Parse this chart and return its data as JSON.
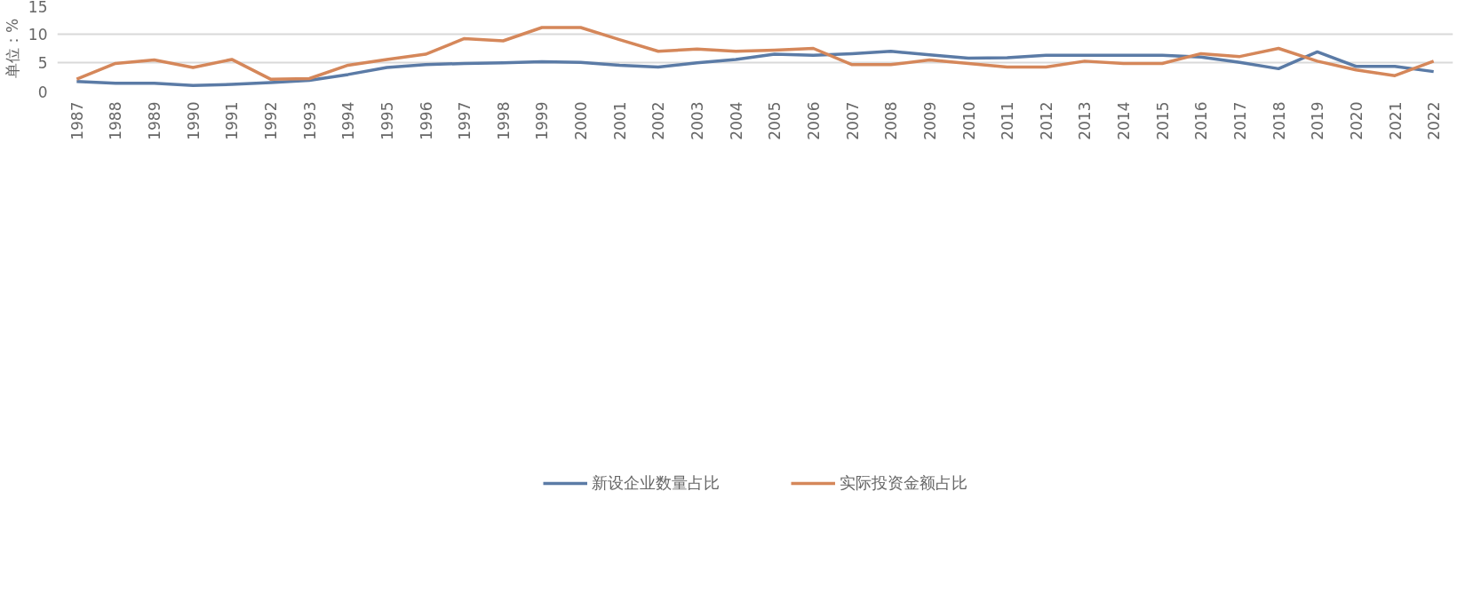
{
  "chart_data": {
    "type": "line",
    "ylabel": "单位：%",
    "categories": [
      "1987",
      "1988",
      "1989",
      "1990",
      "1991",
      "1992",
      "1993",
      "1994",
      "1995",
      "1996",
      "1997",
      "1998",
      "1999",
      "2000",
      "2001",
      "2002",
      "2003",
      "2004",
      "2005",
      "2006",
      "2007",
      "2008",
      "2009",
      "2010",
      "2011",
      "2012",
      "2013",
      "2014",
      "2015",
      "2016",
      "2017",
      "2018",
      "2019",
      "2020",
      "2021",
      "2022"
    ],
    "series": [
      {
        "name": "新设企业数量占比",
        "color": "#5b7ba6",
        "values": [
          1.8,
          1.5,
          1.5,
          1.1,
          1.3,
          1.6,
          2.0,
          3.0,
          4.2,
          4.7,
          4.9,
          5.0,
          5.2,
          5.1,
          4.6,
          4.3,
          5.0,
          5.6,
          6.5,
          6.3,
          6.6,
          7.0,
          6.4,
          5.8,
          5.9,
          6.3,
          6.3,
          6.3,
          6.3,
          6.0,
          5.1,
          4.0,
          6.9,
          4.4,
          4.4,
          3.5
        ]
      },
      {
        "name": "实际投资金额占比",
        "color": "#d5875a",
        "values": [
          2.2,
          4.9,
          5.5,
          4.2,
          5.6,
          2.2,
          2.3,
          4.6,
          5.6,
          6.5,
          9.2,
          8.8,
          11.1,
          11.1,
          9.0,
          7.0,
          7.4,
          7.0,
          7.2,
          7.5,
          4.7,
          4.7,
          5.5,
          4.9,
          4.3,
          4.3,
          5.3,
          4.9,
          4.9,
          6.6,
          6.1,
          7.5,
          5.3,
          3.8,
          2.8,
          5.3
        ]
      }
    ],
    "ylim": [
      0,
      15
    ],
    "yticks": [
      0,
      5,
      10,
      15
    ],
    "grid": "y",
    "legend": "bottom",
    "line_style": "solid"
  }
}
